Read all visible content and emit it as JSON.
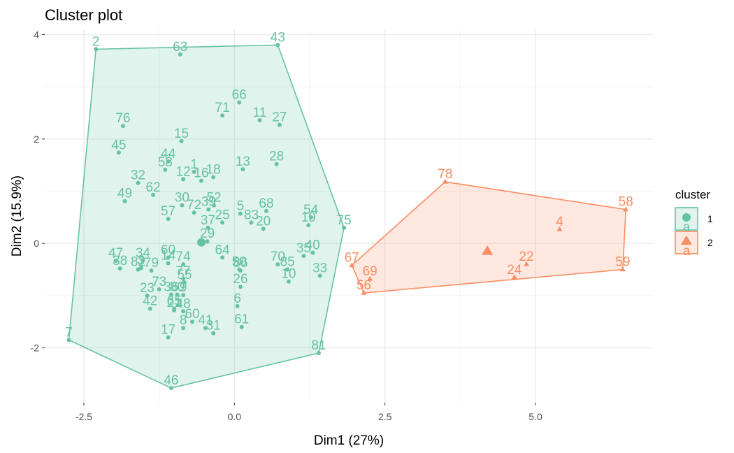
{
  "chart_data": {
    "type": "scatter",
    "title": "Cluster plot",
    "xlabel": "Dim1 (27%)",
    "ylabel": "Dim2 (15.9%)",
    "xlim": [
      -3.15,
      6.95
    ],
    "ylim": [
      -3.05,
      4.1
    ],
    "x_ticks": [
      -2.5,
      0.0,
      2.5,
      5.0
    ],
    "x_tick_labels": [
      "-2.5",
      "0.0",
      "2.5",
      "5.0"
    ],
    "y_ticks": [
      -2,
      0,
      2,
      4
    ],
    "y_tick_labels": [
      "-2",
      "0",
      "2",
      "4"
    ],
    "grid": true,
    "legend": {
      "title": "cluster",
      "position": "right",
      "entries": [
        "1",
        "2"
      ],
      "key_glyph_letter": "a"
    },
    "colors": {
      "1": "#66c2a5",
      "2": "#fc8d62"
    },
    "series": [
      {
        "name": "1",
        "shape": "circle",
        "hull": [
          "2",
          "43",
          "75",
          "81",
          "46",
          "7"
        ],
        "centroid": [
          -0.55,
          0.02
        ],
        "points": [
          {
            "label": "2",
            "x": -2.3,
            "y": 3.72
          },
          {
            "label": "63",
            "x": -0.9,
            "y": 3.62
          },
          {
            "label": "43",
            "x": 0.72,
            "y": 3.8
          },
          {
            "label": "66",
            "x": 0.08,
            "y": 2.7
          },
          {
            "label": "71",
            "x": -0.2,
            "y": 2.45
          },
          {
            "label": "11",
            "x": 0.42,
            "y": 2.36
          },
          {
            "label": "27",
            "x": 0.75,
            "y": 2.27
          },
          {
            "label": "76",
            "x": -1.85,
            "y": 2.25
          },
          {
            "label": "15",
            "x": -0.88,
            "y": 1.96
          },
          {
            "label": "45",
            "x": -1.92,
            "y": 1.74
          },
          {
            "label": "13",
            "x": 0.14,
            "y": 1.42
          },
          {
            "label": "28",
            "x": 0.7,
            "y": 1.52
          },
          {
            "label": "44",
            "x": -1.1,
            "y": 1.57
          },
          {
            "label": "58",
            "x": -1.15,
            "y": 1.41
          },
          {
            "label": "32",
            "x": -1.6,
            "y": 1.16
          },
          {
            "label": "12",
            "x": -0.85,
            "y": 1.23
          },
          {
            "label": "1",
            "x": -0.67,
            "y": 1.37
          },
          {
            "label": "18",
            "x": -0.35,
            "y": 1.27
          },
          {
            "label": "62",
            "x": -1.35,
            "y": 0.93
          },
          {
            "label": "16",
            "x": -0.55,
            "y": 1.2
          },
          {
            "label": "49",
            "x": -1.82,
            "y": 0.81
          },
          {
            "label": "57",
            "x": -1.1,
            "y": 0.47
          },
          {
            "label": "30",
            "x": -0.87,
            "y": 0.73
          },
          {
            "label": "72",
            "x": -0.67,
            "y": 0.59
          },
          {
            "label": "39",
            "x": -0.43,
            "y": 0.65
          },
          {
            "label": "52",
            "x": -0.34,
            "y": 0.73
          },
          {
            "label": "5",
            "x": 0.1,
            "y": 0.57
          },
          {
            "label": "83",
            "x": 0.28,
            "y": 0.4
          },
          {
            "label": "68",
            "x": 0.53,
            "y": 0.62
          },
          {
            "label": "20",
            "x": 0.48,
            "y": 0.28
          },
          {
            "label": "37",
            "x": -0.44,
            "y": 0.3
          },
          {
            "label": "25",
            "x": -0.2,
            "y": 0.4
          },
          {
            "label": "54",
            "x": 1.27,
            "y": 0.5
          },
          {
            "label": "19",
            "x": 1.23,
            "y": 0.35
          },
          {
            "label": "75",
            "x": 1.82,
            "y": 0.3
          },
          {
            "label": "60",
            "x": -1.1,
            "y": -0.27
          },
          {
            "label": "14",
            "x": -1.1,
            "y": -0.38
          },
          {
            "label": "74",
            "x": -0.85,
            "y": -0.4
          },
          {
            "label": "29",
            "x": -0.45,
            "y": 0.04
          },
          {
            "label": "64",
            "x": -0.2,
            "y": -0.27
          },
          {
            "label": "35",
            "x": 1.15,
            "y": -0.24
          },
          {
            "label": "40",
            "x": 1.3,
            "y": -0.18
          },
          {
            "label": "70",
            "x": 0.72,
            "y": -0.4
          },
          {
            "label": "47",
            "x": -1.97,
            "y": -0.33
          },
          {
            "label": "38",
            "x": -1.9,
            "y": -0.48
          },
          {
            "label": "34",
            "x": -1.52,
            "y": -0.33
          },
          {
            "label": "3",
            "x": -1.55,
            "y": -0.47
          },
          {
            "label": "82",
            "x": -1.6,
            "y": -0.5
          },
          {
            "label": "79",
            "x": -1.38,
            "y": -0.52
          },
          {
            "label": "50",
            "x": 0.08,
            "y": -0.5
          },
          {
            "label": "86",
            "x": 0.1,
            "y": -0.52
          },
          {
            "label": "85",
            "x": 0.88,
            "y": -0.5
          },
          {
            "label": "33",
            "x": 1.42,
            "y": -0.62
          },
          {
            "label": "10",
            "x": 0.9,
            "y": -0.73
          },
          {
            "label": "77",
            "x": -0.85,
            "y": -0.68
          },
          {
            "label": "55",
            "x": -0.83,
            "y": -0.75
          },
          {
            "label": "26",
            "x": 0.1,
            "y": -0.83
          },
          {
            "label": "73",
            "x": -1.25,
            "y": -0.88
          },
          {
            "label": "36",
            "x": -1.05,
            "y": -0.98
          },
          {
            "label": "80",
            "x": -0.95,
            "y": -0.98
          },
          {
            "label": "23",
            "x": -1.45,
            "y": -1.0
          },
          {
            "label": "9",
            "x": -0.85,
            "y": -0.99
          },
          {
            "label": "6",
            "x": 0.05,
            "y": -1.2
          },
          {
            "label": "42",
            "x": -1.4,
            "y": -1.25
          },
          {
            "label": "65",
            "x": -1.0,
            "y": -1.25
          },
          {
            "label": "48",
            "x": -0.85,
            "y": -1.3
          },
          {
            "label": "21",
            "x": -1.0,
            "y": -1.28
          },
          {
            "label": "60",
            "x": -0.7,
            "y": -1.5
          },
          {
            "label": "8",
            "x": -0.85,
            "y": -1.62
          },
          {
            "label": "41",
            "x": -0.48,
            "y": -1.62
          },
          {
            "label": "61",
            "x": 0.12,
            "y": -1.6
          },
          {
            "label": "31",
            "x": -0.35,
            "y": -1.72
          },
          {
            "label": "17",
            "x": -1.1,
            "y": -1.8
          },
          {
            "label": "7",
            "x": -2.75,
            "y": -1.85
          },
          {
            "label": "81",
            "x": 1.4,
            "y": -2.1
          },
          {
            "label": "46",
            "x": -1.05,
            "y": -2.77
          }
        ]
      },
      {
        "name": "2",
        "shape": "triangle",
        "hull": [
          "78",
          "58",
          "59",
          "56",
          "67"
        ],
        "centroid": [
          4.2,
          -0.15
        ],
        "points": [
          {
            "label": "78",
            "x": 3.5,
            "y": 1.18
          },
          {
            "label": "58",
            "x": 6.5,
            "y": 0.65
          },
          {
            "label": "4",
            "x": 5.4,
            "y": 0.27
          },
          {
            "label": "22",
            "x": 4.85,
            "y": -0.4
          },
          {
            "label": "24",
            "x": 4.65,
            "y": -0.65
          },
          {
            "label": "59",
            "x": 6.45,
            "y": -0.5
          },
          {
            "label": "67",
            "x": 1.95,
            "y": -0.42
          },
          {
            "label": "69",
            "x": 2.25,
            "y": -0.68
          },
          {
            "label": "56",
            "x": 2.15,
            "y": -0.95
          }
        ]
      }
    ]
  }
}
